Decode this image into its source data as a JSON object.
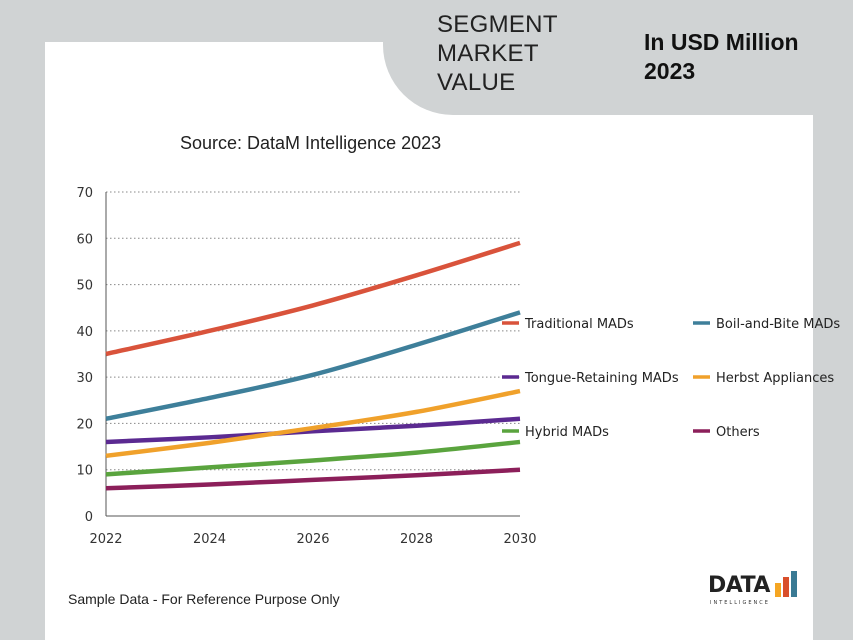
{
  "header": {
    "segment_title_lines": [
      "SEGMENT",
      "MARKET",
      "VALUE"
    ],
    "unit_lines": [
      "In USD Million",
      "2023"
    ]
  },
  "source": "Source: DataM Intelligence 2023",
  "footnote": "Sample Data - For Reference Purpose Only",
  "logo": {
    "name": "DATA",
    "tagline": "INTELLIGENCE",
    "colors": [
      "#f5a623",
      "#d94f2b",
      "#3a7a94"
    ]
  },
  "chart_data": {
    "type": "line",
    "title": "",
    "xlabel": "",
    "ylabel": "",
    "x": [
      2022,
      2024,
      2026,
      2028,
      2030
    ],
    "x_tick_labels": [
      "2022",
      "2024",
      "2026",
      "2028",
      "2030"
    ],
    "y_tick_labels": [
      "0",
      "10",
      "20",
      "30",
      "40",
      "50",
      "60",
      "70"
    ],
    "ylim": [
      0,
      70
    ],
    "grid": "horizontal dotted",
    "legend_position": "right",
    "series": [
      {
        "name": "Traditional MADs",
        "color": "#d9533b",
        "values": [
          35,
          40,
          45.5,
          52,
          59
        ]
      },
      {
        "name": "Boil-and-Bite MADs",
        "color": "#3e7f9a",
        "values": [
          21,
          25.5,
          30.5,
          37,
          44
        ]
      },
      {
        "name": "Tongue-Retaining MADs",
        "color": "#5b2a91",
        "values": [
          16,
          17,
          18.3,
          19.5,
          21
        ]
      },
      {
        "name": "Herbst Appliances",
        "color": "#f0a12b",
        "values": [
          13,
          15.8,
          19,
          22.5,
          27
        ]
      },
      {
        "name": "Hybrid MADs",
        "color": "#5aa43e",
        "values": [
          9,
          10.5,
          12,
          13.7,
          16
        ]
      },
      {
        "name": "Others",
        "color": "#8c1f5a",
        "values": [
          6,
          6.8,
          7.8,
          8.8,
          10
        ]
      }
    ]
  }
}
